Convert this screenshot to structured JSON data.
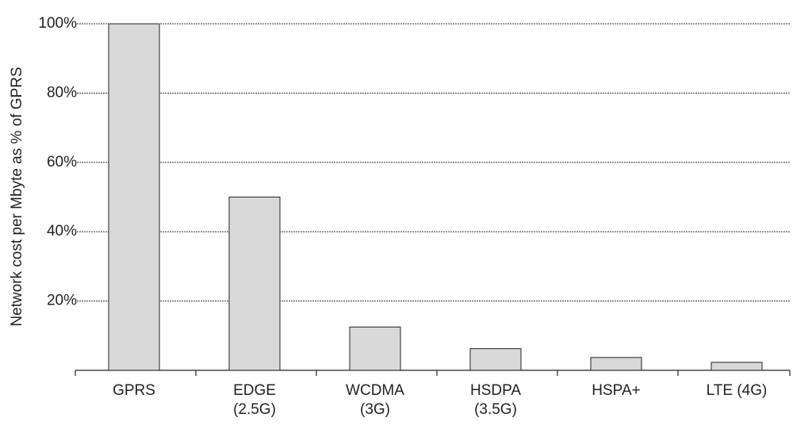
{
  "chart_data": {
    "type": "bar",
    "y_label": "Network cost per Mbyte as % of GPRS",
    "categories": [
      "GPRS",
      "EDGE\n(2.5G)",
      "WCDMA\n(3G)",
      "HSDPA\n(3.5G)",
      "HSPA+",
      "LTE (4G)"
    ],
    "values": [
      100,
      50,
      12.5,
      6.25,
      3.7,
      2.3
    ],
    "color": "#d9d9d9",
    "ylim": [
      0,
      100
    ],
    "yticks": [
      {
        "value": 20,
        "label": "20%"
      },
      {
        "value": 40,
        "label": "40%"
      },
      {
        "value": 60,
        "label": "60%"
      },
      {
        "value": 80,
        "label": "80%"
      },
      {
        "value": 100,
        "label": "100%"
      }
    ],
    "grid": true
  }
}
